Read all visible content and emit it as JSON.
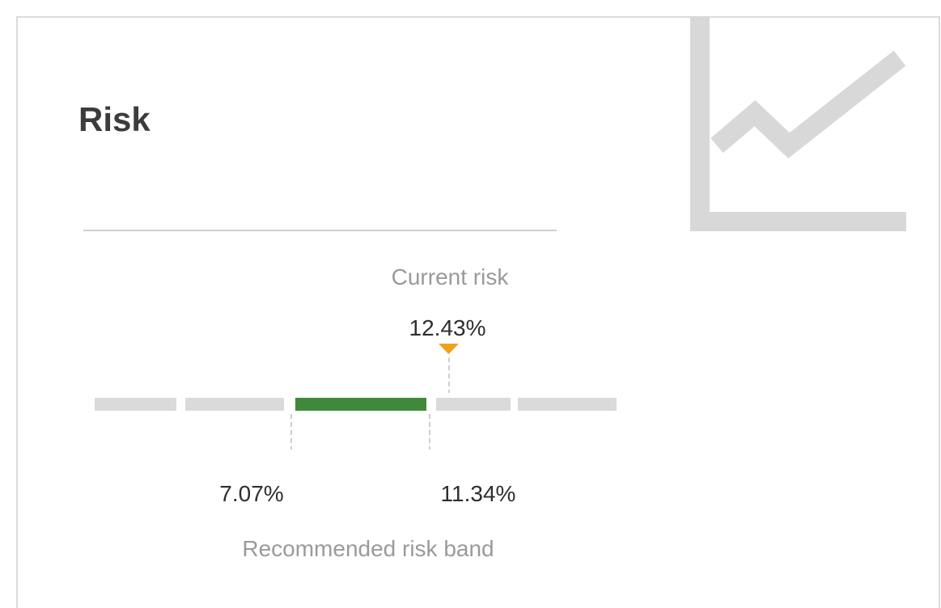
{
  "card": {
    "title": "Risk",
    "current": {
      "label": "Current risk",
      "value": "12.43%"
    },
    "band": {
      "low": "7.07%",
      "high": "11.34%",
      "label": "Recommended risk band"
    }
  }
}
